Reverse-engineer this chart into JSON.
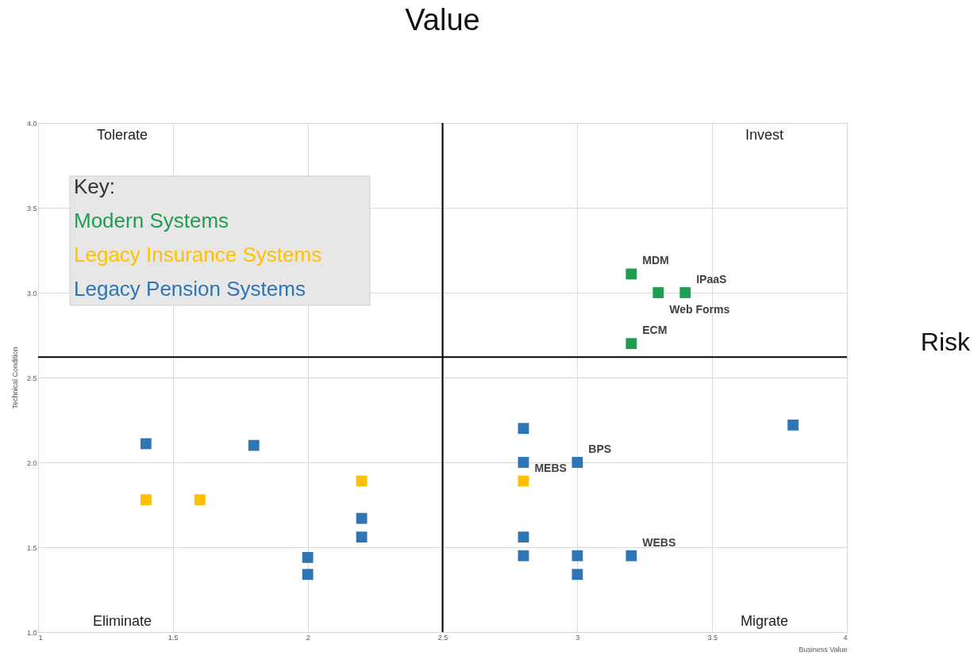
{
  "chart_data": {
    "type": "scatter",
    "title": "Value",
    "xlabel": "Business Value",
    "ylabel": "Technical Condition",
    "legend_title": "Key:",
    "xlim": [
      1,
      4
    ],
    "xticks": [
      1,
      1.5,
      2,
      2.5,
      3,
      3.5,
      4
    ],
    "ylim": [
      1,
      4
    ],
    "yticks": [
      {
        "value": 1,
        "label": "1.0"
      },
      {
        "value": 1.5,
        "label": "1.5"
      },
      {
        "value": 2,
        "label": "2.0"
      },
      {
        "value": 2.5,
        "label": "2.5"
      },
      {
        "value": 3,
        "label": "3.0"
      },
      {
        "value": 3.5,
        "label": "3.5"
      },
      {
        "value": 4,
        "label": "4.0"
      }
    ],
    "grid": true,
    "legend": "top left",
    "marker": "square",
    "series": [
      {
        "name": "Modern Systems",
        "color": "#1e9e50",
        "x": [
          3.2,
          3.3,
          3.4,
          3.2
        ],
        "values": [
          3.11,
          3.0,
          3.0,
          2.7
        ]
      },
      {
        "name": "Legacy Insurance Systems",
        "color": "#ffc000",
        "x": [
          1.4,
          1.6,
          2.2,
          2.8
        ],
        "values": [
          1.78,
          1.78,
          1.89,
          1.89
        ]
      },
      {
        "name": "Legacy Pension Systems",
        "color": "#2e75b6",
        "x": [
          1.4,
          1.8,
          2.0,
          2.0,
          2.2,
          2.2,
          2.8,
          2.8,
          2.8,
          2.8,
          3.0,
          3.0,
          3.0,
          3.2,
          3.8
        ],
        "values": [
          2.11,
          2.1,
          1.44,
          1.34,
          1.67,
          1.56,
          2.2,
          2.0,
          1.56,
          1.45,
          2.0,
          1.45,
          1.34,
          1.45,
          2.22
        ]
      }
    ],
    "ref_lines": [
      {
        "axis": "x",
        "value": 2.5,
        "color": "#000000"
      },
      {
        "axis": "y",
        "value": 2.62,
        "color": "#000000"
      }
    ],
    "annotations": [
      "Tolerate",
      "Invest",
      "Eliminate",
      "Migrate",
      "Risk",
      {
        "text": "MDM",
        "x": 3.2,
        "y": 3.11
      },
      {
        "text": "IPaaS",
        "x": 3.4,
        "y": 3.0
      },
      {
        "text": "Web Forms",
        "x": 3.3,
        "y": 3.0
      },
      {
        "text": "ECM",
        "x": 3.2,
        "y": 2.7
      },
      {
        "text": "BPS",
        "x": 3.0,
        "y": 2.0
      },
      {
        "text": "MEBS",
        "x": 2.8,
        "y": 1.89
      },
      {
        "text": "WEBS",
        "x": 3.2,
        "y": 1.45
      }
    ]
  }
}
